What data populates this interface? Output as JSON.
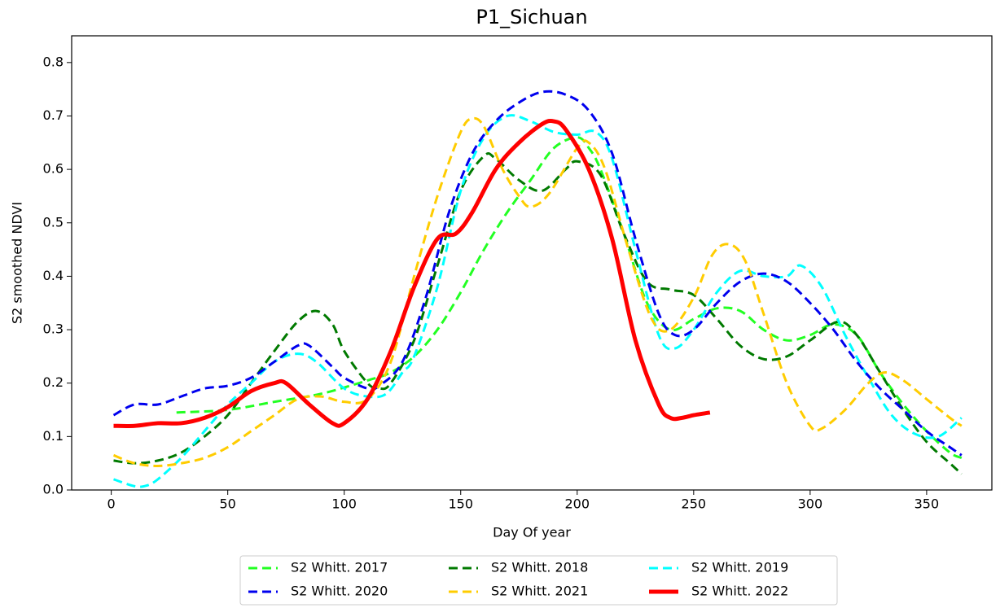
{
  "chart_data": {
    "type": "line",
    "title": "P1_Sichuan",
    "xlabel": "Day Of year",
    "ylabel": "S2 smoothed NDVI",
    "xlim": [
      -17,
      378
    ],
    "xticks": [
      0,
      50,
      100,
      150,
      200,
      250,
      300,
      350
    ],
    "ylim": [
      0,
      0.85
    ],
    "yticks": [
      {
        "value": 0,
        "label": "0.0"
      },
      0.1,
      0.2,
      0.3,
      0.4,
      0.5,
      0.6,
      0.7,
      0.8
    ],
    "grid": false,
    "legend": "lower center outside",
    "series": [
      {
        "name": "S2 Whitt. 2017",
        "color": "#22ff22",
        "linestyle": "dashed",
        "x": [
          28,
          50,
          70,
          90,
          110,
          120,
          130,
          140,
          150,
          160,
          170,
          180,
          190,
          200,
          205,
          210,
          220,
          230,
          240,
          250,
          260,
          270,
          280,
          290,
          300,
          310,
          320,
          330,
          340,
          350,
          360,
          365
        ],
        "values": [
          0.145,
          0.15,
          0.165,
          0.18,
          0.205,
          0.22,
          0.25,
          0.3,
          0.37,
          0.45,
          0.52,
          0.58,
          0.64,
          0.66,
          0.64,
          0.6,
          0.48,
          0.35,
          0.3,
          0.32,
          0.34,
          0.335,
          0.3,
          0.28,
          0.29,
          0.31,
          0.29,
          0.22,
          0.16,
          0.11,
          0.07,
          0.06
        ]
      },
      {
        "name": "S2 Whitt. 2018",
        "color": "#007a00",
        "linestyle": "dashed",
        "x": [
          1,
          10,
          20,
          30,
          40,
          50,
          60,
          70,
          80,
          88,
          95,
          100,
          110,
          115,
          120,
          130,
          140,
          150,
          160,
          165,
          175,
          185,
          195,
          200,
          210,
          220,
          230,
          240,
          250,
          260,
          270,
          280,
          290,
          300,
          312,
          320,
          330,
          340,
          350,
          360,
          365
        ],
        "values": [
          0.055,
          0.05,
          0.055,
          0.07,
          0.1,
          0.14,
          0.2,
          0.26,
          0.315,
          0.335,
          0.31,
          0.26,
          0.2,
          0.19,
          0.2,
          0.28,
          0.42,
          0.56,
          0.625,
          0.62,
          0.58,
          0.56,
          0.6,
          0.615,
          0.59,
          0.48,
          0.39,
          0.375,
          0.365,
          0.32,
          0.27,
          0.245,
          0.25,
          0.28,
          0.315,
          0.29,
          0.22,
          0.15,
          0.09,
          0.05,
          0.03
        ]
      },
      {
        "name": "S2 Whitt. 2019",
        "color": "#00ffff",
        "linestyle": "dashed",
        "x": [
          1,
          10,
          15,
          20,
          30,
          40,
          50,
          60,
          70,
          80,
          88,
          100,
          110,
          118,
          125,
          130,
          140,
          150,
          160,
          170,
          180,
          190,
          200,
          208,
          215,
          225,
          235,
          242,
          250,
          260,
          270,
          280,
          290,
          296,
          305,
          315,
          325,
          335,
          345,
          355,
          365
        ],
        "values": [
          0.02,
          0.007,
          0.008,
          0.02,
          0.06,
          0.11,
          0.16,
          0.2,
          0.24,
          0.255,
          0.24,
          0.19,
          0.175,
          0.18,
          0.22,
          0.25,
          0.38,
          0.56,
          0.66,
          0.7,
          0.69,
          0.67,
          0.665,
          0.67,
          0.62,
          0.45,
          0.29,
          0.265,
          0.3,
          0.37,
          0.41,
          0.4,
          0.4,
          0.42,
          0.38,
          0.29,
          0.21,
          0.14,
          0.105,
          0.1,
          0.135
        ]
      },
      {
        "name": "S2 Whitt. 2020",
        "color": "#0000ee",
        "linestyle": "dashed",
        "x": [
          1,
          10,
          20,
          30,
          40,
          50,
          60,
          70,
          80,
          85,
          95,
          100,
          110,
          115,
          125,
          135,
          145,
          155,
          165,
          175,
          185,
          195,
          205,
          215,
          225,
          235,
          242,
          250,
          260,
          270,
          280,
          290,
          300,
          310,
          320,
          330,
          340,
          350,
          360,
          365
        ],
        "values": [
          0.14,
          0.16,
          0.16,
          0.175,
          0.19,
          0.195,
          0.21,
          0.24,
          0.27,
          0.27,
          0.23,
          0.21,
          0.19,
          0.195,
          0.24,
          0.36,
          0.52,
          0.63,
          0.69,
          0.725,
          0.745,
          0.74,
          0.71,
          0.63,
          0.47,
          0.33,
          0.29,
          0.3,
          0.35,
          0.39,
          0.405,
          0.39,
          0.35,
          0.3,
          0.24,
          0.19,
          0.15,
          0.11,
          0.08,
          0.065
        ]
      },
      {
        "name": "S2 Whitt. 2021",
        "color": "#ffcc00",
        "linestyle": "dashed",
        "x": [
          1,
          10,
          20,
          30,
          40,
          50,
          60,
          70,
          80,
          90,
          100,
          110,
          120,
          130,
          140,
          150,
          155,
          160,
          168,
          175,
          180,
          188,
          200,
          205,
          212,
          222,
          232,
          240,
          250,
          258,
          265,
          272,
          280,
          290,
          300,
          305,
          315,
          325,
          332,
          340,
          350,
          360,
          365
        ],
        "values": [
          0.065,
          0.05,
          0.045,
          0.05,
          0.06,
          0.08,
          0.11,
          0.14,
          0.17,
          0.175,
          0.165,
          0.17,
          0.24,
          0.4,
          0.55,
          0.67,
          0.695,
          0.68,
          0.6,
          0.55,
          0.53,
          0.555,
          0.64,
          0.65,
          0.6,
          0.45,
          0.32,
          0.3,
          0.36,
          0.44,
          0.46,
          0.43,
          0.33,
          0.2,
          0.12,
          0.115,
          0.15,
          0.2,
          0.22,
          0.205,
          0.17,
          0.135,
          0.12
        ]
      },
      {
        "name": "S2 Whitt. 2022",
        "color": "#ff0000",
        "linestyle": "solid",
        "x": [
          1,
          10,
          20,
          30,
          40,
          50,
          60,
          70,
          75,
          85,
          95,
          100,
          110,
          120,
          130,
          140,
          148,
          155,
          165,
          175,
          185,
          190,
          195,
          205,
          215,
          225,
          235,
          240,
          245,
          250,
          257
        ],
        "values": [
          0.12,
          0.12,
          0.125,
          0.125,
          0.135,
          0.155,
          0.185,
          0.2,
          0.2,
          0.16,
          0.125,
          0.125,
          0.17,
          0.26,
          0.38,
          0.47,
          0.48,
          0.52,
          0.6,
          0.65,
          0.685,
          0.69,
          0.675,
          0.6,
          0.47,
          0.28,
          0.16,
          0.135,
          0.135,
          0.14,
          0.145
        ]
      }
    ]
  }
}
